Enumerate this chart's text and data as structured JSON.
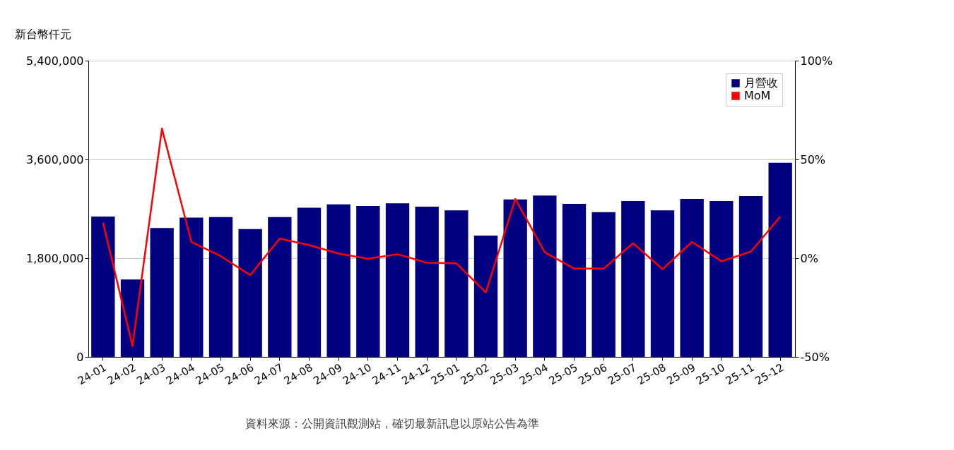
{
  "chart_data": {
    "type": "bar",
    "ylabel": "新台幣仟元",
    "categories": [
      "24-01",
      "24-02",
      "24-03",
      "24-04",
      "24-05",
      "24-06",
      "24-07",
      "24-08",
      "24-09",
      "24-10",
      "24-11",
      "24-12",
      "25-01",
      "25-02",
      "25-03",
      "25-04",
      "25-05",
      "25-06",
      "25-07",
      "25-08",
      "25-09",
      "25-10",
      "25-11",
      "25-12"
    ],
    "series": [
      {
        "name": "月營收",
        "color": "#000080",
        "values": [
          2560000,
          1410000,
          2350000,
          2540000,
          2550000,
          2330000,
          2550000,
          2720000,
          2780000,
          2750000,
          2800000,
          2740000,
          2670000,
          2210000,
          2870000,
          2940000,
          2790000,
          2640000,
          2840000,
          2670000,
          2880000,
          2840000,
          2930000,
          3540000
        ]
      },
      {
        "name": "MoM",
        "type": "line",
        "color": "#ff0000",
        "axis": "y2",
        "values": [
          18,
          -44.5,
          65.6,
          8.2,
          1,
          -8.6,
          9.9,
          6.6,
          2.3,
          -0.3,
          2,
          -2.3,
          -2.6,
          -17.4,
          30,
          3,
          -5.3,
          -5.3,
          7.6,
          -5.6,
          8.2,
          -1.6,
          3.3,
          21
        ]
      }
    ],
    "ylim": [
      0,
      5400000
    ],
    "yticks": [
      {
        "value": 0,
        "label": "0"
      },
      {
        "value": 1800000,
        "label": "1,800,000"
      },
      {
        "value": 3600000,
        "label": "3,600,000"
      },
      {
        "value": 5400000,
        "label": "5,400,000"
      }
    ],
    "y2lim": [
      -50,
      100
    ],
    "y2ticks": [
      {
        "value": -50,
        "label": "-50%"
      },
      {
        "value": 0,
        "label": "0%"
      },
      {
        "value": 50,
        "label": "50%"
      },
      {
        "value": 100,
        "label": "100%"
      }
    ],
    "grid": "y",
    "legend": "top right",
    "annotations": [
      "資料來源：公開資訊觀測站，確切最新訊息以原站公告為準"
    ]
  }
}
